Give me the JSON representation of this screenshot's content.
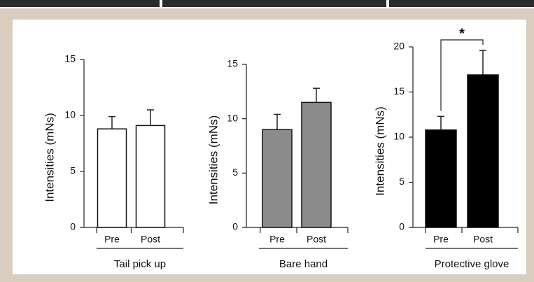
{
  "chart_data": [
    {
      "type": "bar",
      "ylabel": "Intensities (mNs)",
      "xlabel": "Tail pick up",
      "categories": [
        "Pre",
        "Post"
      ],
      "values": [
        8.8,
        9.1
      ],
      "errors": [
        1.1,
        1.4
      ],
      "color": "#ffffff",
      "ylim": [
        0,
        15
      ],
      "yticks": [
        0,
        5,
        10,
        15
      ]
    },
    {
      "type": "bar",
      "ylabel": "Intensities (mNs)",
      "xlabel": "Bare hand",
      "categories": [
        "Pre",
        "Post"
      ],
      "values": [
        9.0,
        11.5
      ],
      "errors": [
        1.4,
        1.3
      ],
      "color": "#8c8c8c",
      "ylim": [
        0,
        15
      ],
      "yticks": [
        0,
        5,
        10,
        15
      ]
    },
    {
      "type": "bar",
      "ylabel": "Intensities (mNs)",
      "xlabel": "Protective glove",
      "categories": [
        "Pre",
        "Post"
      ],
      "values": [
        10.8,
        16.9
      ],
      "errors": [
        1.5,
        2.7
      ],
      "color": "#000000",
      "ylim": [
        0,
        20
      ],
      "yticks": [
        0,
        5,
        10,
        15,
        20
      ],
      "annotation": "*"
    }
  ]
}
